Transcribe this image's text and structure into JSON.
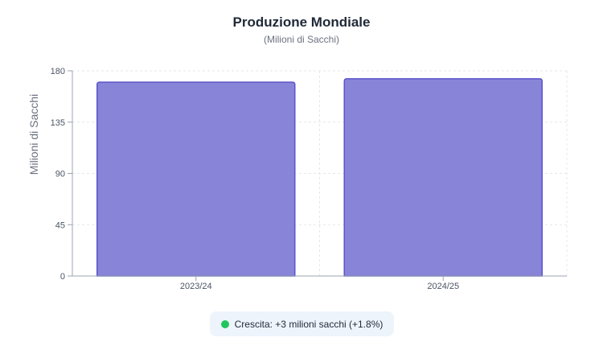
{
  "chart_data": {
    "type": "bar",
    "title": "Produzione Mondiale",
    "subtitle": "(Milioni di Sacchi)",
    "xlabel": "",
    "ylabel": "Milioni di Sacchi",
    "categories": [
      "2023/24",
      "2024/25"
    ],
    "values": [
      170,
      173
    ],
    "ylim": [
      0,
      180
    ],
    "yticks": [
      "0",
      "45",
      "90",
      "135",
      "180"
    ],
    "grid": true,
    "bar_color": "#8884d8",
    "bar_stroke": "#5b55c9"
  },
  "growth": {
    "text": "Crescita: +3 milioni sacchi (+1.8%)",
    "color": "#22c55e"
  }
}
